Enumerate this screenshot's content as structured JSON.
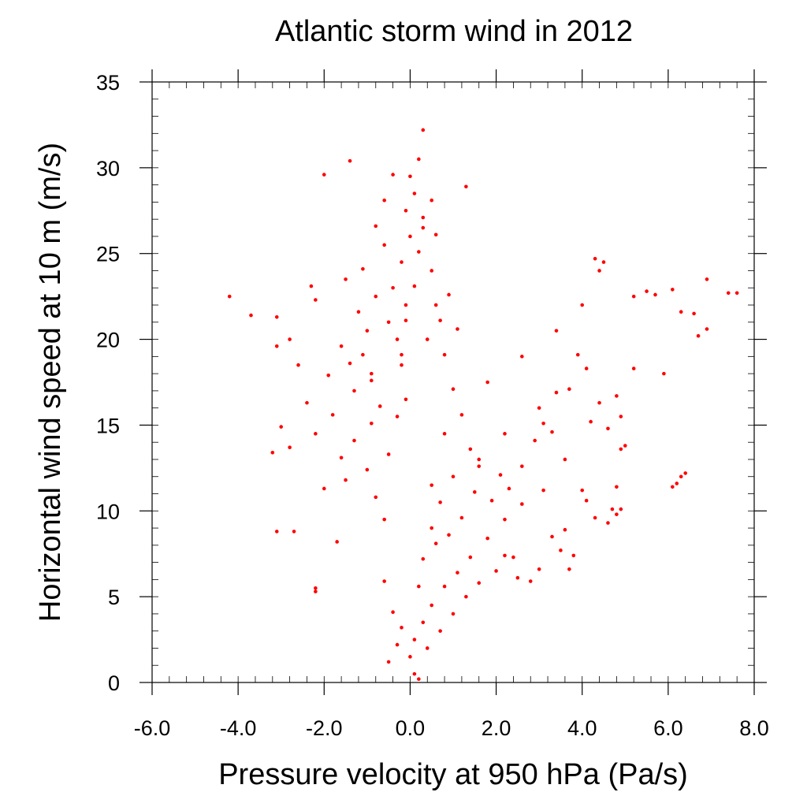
{
  "chart_data": {
    "type": "scatter",
    "title": "Atlantic storm wind in 2012",
    "xlabel": "Pressure velocity at 950 hPa (Pa/s)",
    "ylabel": "Horizontal wind speed at 10 m (m/s)",
    "xlim": [
      -6.0,
      8.0
    ],
    "ylim": [
      0,
      35
    ],
    "xticks": [
      {
        "value": -6.0,
        "label": "-6.0"
      },
      {
        "value": -4.0,
        "label": "-4.0"
      },
      {
        "value": -2.0,
        "label": "-2.0"
      },
      {
        "value": 0.0,
        "label": "0.0"
      },
      {
        "value": 2.0,
        "label": "2.0"
      },
      {
        "value": 4.0,
        "label": "4.0"
      },
      {
        "value": 6.0,
        "label": "6.0"
      },
      {
        "value": 8.0,
        "label": "8.0"
      }
    ],
    "yticks": [
      {
        "value": 0,
        "label": "0"
      },
      {
        "value": 5,
        "label": "5"
      },
      {
        "value": 10,
        "label": "10"
      },
      {
        "value": 15,
        "label": "15"
      },
      {
        "value": 20,
        "label": "20"
      },
      {
        "value": 25,
        "label": "25"
      },
      {
        "value": 30,
        "label": "30"
      },
      {
        "value": 35,
        "label": "35"
      }
    ],
    "grid": false,
    "marker_color": "#ff0000",
    "series": [
      {
        "points": [
          [
            -0.1,
            22.0
          ],
          [
            -0.2,
            24.5
          ],
          [
            0.0,
            26.0
          ],
          [
            -0.3,
            20.0
          ],
          [
            -0.1,
            27.5
          ],
          [
            0.1,
            28.5
          ],
          [
            -0.2,
            18.5
          ],
          [
            -0.4,
            23.0
          ],
          [
            0.0,
            29.5
          ],
          [
            0.2,
            30.5
          ],
          [
            -0.1,
            16.5
          ],
          [
            -0.5,
            21.0
          ],
          [
            -0.6,
            25.5
          ],
          [
            0.3,
            26.5
          ],
          [
            -0.3,
            15.5
          ],
          [
            0.3,
            32.2
          ],
          [
            -1.0,
            20.5
          ],
          [
            -1.3,
            17.0
          ],
          [
            -0.8,
            22.5
          ],
          [
            0.5,
            24.0
          ],
          [
            0.4,
            20.0
          ],
          [
            -0.9,
            18.0
          ],
          [
            -1.5,
            23.5
          ],
          [
            0.6,
            22.0
          ],
          [
            -1.4,
            30.4
          ],
          [
            -2.0,
            29.6
          ],
          [
            1.3,
            28.9
          ],
          [
            -4.2,
            22.5
          ],
          [
            -3.7,
            21.4
          ],
          [
            -3.1,
            21.3
          ],
          [
            -3.1,
            19.6
          ],
          [
            -2.8,
            20.0
          ],
          [
            -2.6,
            18.5
          ],
          [
            -2.3,
            23.1
          ],
          [
            -2.2,
            22.3
          ],
          [
            -3.0,
            14.9
          ],
          [
            -3.2,
            13.4
          ],
          [
            -2.8,
            13.7
          ],
          [
            -2.4,
            16.3
          ],
          [
            -2.2,
            14.5
          ],
          [
            -2.0,
            11.3
          ],
          [
            -2.2,
            5.5
          ],
          [
            -2.2,
            5.3
          ],
          [
            -3.1,
            8.8
          ],
          [
            -2.7,
            8.8
          ],
          [
            -1.7,
            8.2
          ],
          [
            -1.5,
            11.8
          ],
          [
            -1.0,
            12.4
          ],
          [
            -0.5,
            13.3
          ],
          [
            -0.8,
            10.8
          ],
          [
            -0.6,
            9.5
          ],
          [
            0.5,
            11.5
          ],
          [
            1.0,
            12.0
          ],
          [
            1.6,
            13.0
          ],
          [
            2.2,
            14.5
          ],
          [
            3.0,
            16.0
          ],
          [
            0.8,
            14.5
          ],
          [
            1.8,
            17.5
          ],
          [
            2.6,
            19.0
          ],
          [
            3.4,
            20.5
          ],
          [
            4.0,
            22.0
          ],
          [
            4.5,
            24.5
          ],
          [
            4.4,
            24.0
          ],
          [
            4.3,
            24.7
          ],
          [
            5.2,
            22.5
          ],
          [
            5.5,
            22.8
          ],
          [
            5.7,
            22.6
          ],
          [
            6.1,
            22.9
          ],
          [
            6.3,
            21.6
          ],
          [
            6.6,
            21.5
          ],
          [
            6.7,
            20.2
          ],
          [
            6.9,
            20.6
          ],
          [
            6.9,
            23.5
          ],
          [
            7.4,
            22.7
          ],
          [
            7.6,
            22.7
          ],
          [
            5.9,
            18.0
          ],
          [
            5.2,
            18.3
          ],
          [
            4.8,
            16.7
          ],
          [
            4.2,
            15.2
          ],
          [
            3.6,
            13.0
          ],
          [
            3.1,
            11.2
          ],
          [
            2.6,
            10.4
          ],
          [
            2.2,
            9.5
          ],
          [
            1.8,
            8.4
          ],
          [
            1.4,
            7.3
          ],
          [
            1.1,
            6.4
          ],
          [
            0.8,
            5.6
          ],
          [
            0.5,
            4.5
          ],
          [
            0.3,
            3.5
          ],
          [
            0.1,
            2.5
          ],
          [
            0.0,
            1.5
          ],
          [
            0.1,
            0.5
          ],
          [
            0.2,
            0.2
          ],
          [
            0.4,
            2.0
          ],
          [
            0.7,
            3.0
          ],
          [
            1.0,
            4.0
          ],
          [
            1.3,
            5.0
          ],
          [
            1.6,
            5.8
          ],
          [
            2.0,
            6.5
          ],
          [
            2.4,
            7.3
          ],
          [
            -0.2,
            3.2
          ],
          [
            -0.3,
            2.2
          ],
          [
            -0.4,
            4.1
          ],
          [
            -0.6,
            5.9
          ],
          [
            -0.5,
            1.2
          ],
          [
            0.2,
            5.6
          ],
          [
            0.3,
            7.2
          ],
          [
            0.5,
            9.0
          ],
          [
            0.7,
            10.5
          ],
          [
            0.6,
            8.1
          ],
          [
            3.3,
            8.5
          ],
          [
            3.5,
            7.7
          ],
          [
            3.6,
            8.9
          ],
          [
            3.8,
            7.4
          ],
          [
            3.7,
            6.6
          ],
          [
            3.0,
            6.6
          ],
          [
            2.8,
            5.9
          ],
          [
            2.5,
            6.1
          ],
          [
            2.2,
            7.4
          ],
          [
            4.7,
            10.1
          ],
          [
            4.6,
            9.3
          ],
          [
            4.8,
            9.8
          ],
          [
            4.9,
            10.1
          ],
          [
            4.3,
            9.6
          ],
          [
            4.1,
            10.6
          ],
          [
            4.0,
            11.2
          ],
          [
            4.8,
            11.4
          ],
          [
            6.2,
            11.6
          ],
          [
            6.3,
            12.0
          ],
          [
            6.4,
            12.2
          ],
          [
            6.1,
            11.4
          ],
          [
            4.9,
            13.6
          ],
          [
            5.0,
            13.8
          ],
          [
            4.9,
            15.5
          ],
          [
            4.6,
            14.8
          ],
          [
            4.4,
            16.3
          ],
          [
            4.1,
            18.3
          ],
          [
            3.9,
            19.1
          ],
          [
            3.7,
            17.1
          ],
          [
            3.4,
            16.9
          ],
          [
            3.3,
            14.6
          ],
          [
            3.1,
            15.1
          ],
          [
            2.9,
            14.1
          ],
          [
            2.6,
            12.6
          ],
          [
            2.3,
            11.3
          ],
          [
            2.1,
            12.1
          ],
          [
            1.9,
            10.6
          ],
          [
            1.5,
            11.1
          ],
          [
            1.2,
            9.6
          ],
          [
            0.9,
            8.6
          ],
          [
            -0.9,
            17.6
          ],
          [
            -1.1,
            19.1
          ],
          [
            -1.2,
            21.6
          ],
          [
            -1.1,
            24.1
          ],
          [
            -0.8,
            26.6
          ],
          [
            -0.6,
            28.1
          ],
          [
            -0.4,
            29.6
          ],
          [
            -0.7,
            16.1
          ],
          [
            -0.9,
            15.1
          ],
          [
            -1.3,
            14.1
          ],
          [
            -1.6,
            13.1
          ],
          [
            -1.8,
            15.6
          ],
          [
            -1.9,
            17.9
          ],
          [
            -1.6,
            19.6
          ],
          [
            -1.4,
            18.6
          ],
          [
            -0.2,
            19.1
          ],
          [
            -0.1,
            21.1
          ],
          [
            0.1,
            23.1
          ],
          [
            0.2,
            25.1
          ],
          [
            0.3,
            27.1
          ],
          [
            0.5,
            28.1
          ],
          [
            0.6,
            26.1
          ],
          [
            0.7,
            21.1
          ],
          [
            0.8,
            19.1
          ],
          [
            1.0,
            17.1
          ],
          [
            1.2,
            15.6
          ],
          [
            1.4,
            13.6
          ],
          [
            1.6,
            12.6
          ],
          [
            0.9,
            22.6
          ],
          [
            1.1,
            20.6
          ]
        ]
      }
    ]
  }
}
